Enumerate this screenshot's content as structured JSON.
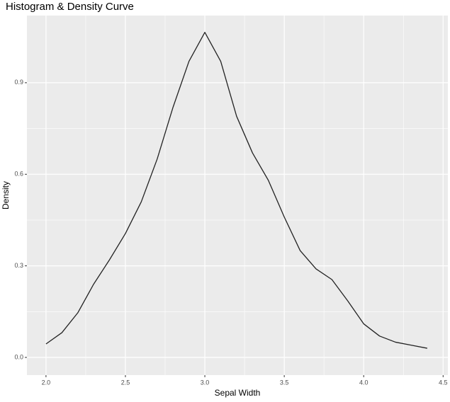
{
  "chart_data": {
    "type": "line",
    "title": "Histogram & Density Curve",
    "x_label": "Sepal Width",
    "y_label": "Density",
    "x": [
      2.0,
      2.1,
      2.2,
      2.3,
      2.4,
      2.5,
      2.6,
      2.7,
      2.8,
      2.9,
      3.0,
      3.1,
      3.2,
      3.3,
      3.4,
      3.5,
      3.6,
      3.7,
      3.8,
      3.9,
      4.0,
      4.1,
      4.2,
      4.3,
      4.4
    ],
    "values": [
      0.044,
      0.081,
      0.146,
      0.24,
      0.32,
      0.406,
      0.51,
      0.65,
      0.82,
      0.97,
      1.065,
      0.97,
      0.79,
      0.67,
      0.58,
      0.46,
      0.35,
      0.29,
      0.255,
      0.185,
      0.11,
      0.07,
      0.05,
      0.04,
      0.03
    ],
    "color": "#222222",
    "xlim": [
      1.88,
      4.53
    ],
    "ylim": [
      -0.058,
      1.12
    ],
    "xticks": [
      {
        "value": 2.0,
        "label": "2.0"
      },
      2.5,
      {
        "value": 3.0,
        "label": "3.0"
      },
      3.5,
      {
        "value": 4.0,
        "label": "4.0"
      },
      4.5
    ],
    "yticks": [
      {
        "value": 0.0,
        "label": "0.0"
      },
      0.3,
      0.6,
      0.9
    ],
    "grid": true
  }
}
